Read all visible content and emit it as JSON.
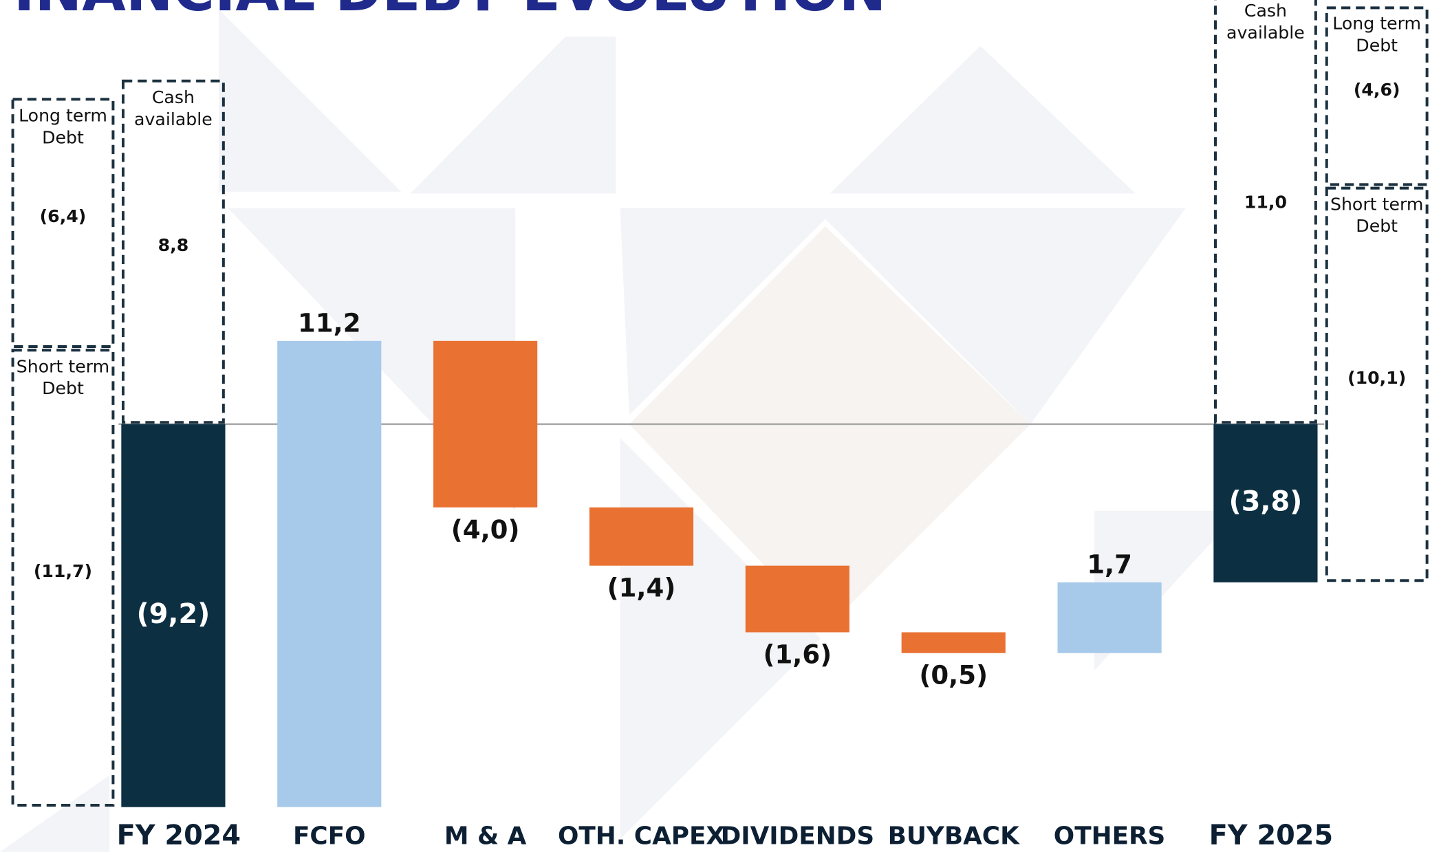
{
  "chart_data": {
    "type": "waterfall",
    "title": "INANCIAL DEBT EVOLUTION",
    "categories": [
      "FY 2024",
      "FCFO",
      "M & A",
      "OTH. CAPEX",
      "DIVIDENDS",
      "BUYBACK",
      "OTHERS",
      "FY 2025"
    ],
    "values": [
      -9.2,
      11.2,
      -4.0,
      -1.4,
      -1.6,
      -0.5,
      1.7,
      -3.8
    ],
    "value_labels": [
      "(9,2)",
      "11,2",
      "(4,0)",
      "(1,4)",
      "(1,6)",
      "(0,5)",
      "1,7",
      "(3,8)"
    ],
    "measure": [
      "total",
      "relative",
      "relative",
      "relative",
      "relative",
      "relative",
      "relative",
      "total"
    ],
    "colors": {
      "total": "#0c2f42",
      "increase": "#a7caeb",
      "decrease": "#e97132"
    },
    "breakdowns": [
      {
        "category": "FY 2024",
        "items": [
          {
            "name": "Short term Debt",
            "value": -11.7,
            "value_label": "(11,7)"
          },
          {
            "name": "Long term Debt",
            "value": -6.4,
            "value_label": "(6,4)"
          },
          {
            "name": "Cash available",
            "value": 8.8,
            "value_label": "8,8"
          }
        ]
      },
      {
        "category": "FY 2025",
        "items": [
          {
            "name": "Short term Debt",
            "value": -10.1,
            "value_label": "(10,1)"
          },
          {
            "name": "Long term Debt",
            "value": -4.6,
            "value_label": "(4,6)"
          },
          {
            "name": "Cash available",
            "value": 11.0,
            "value_label": "11,0"
          }
        ]
      }
    ]
  }
}
